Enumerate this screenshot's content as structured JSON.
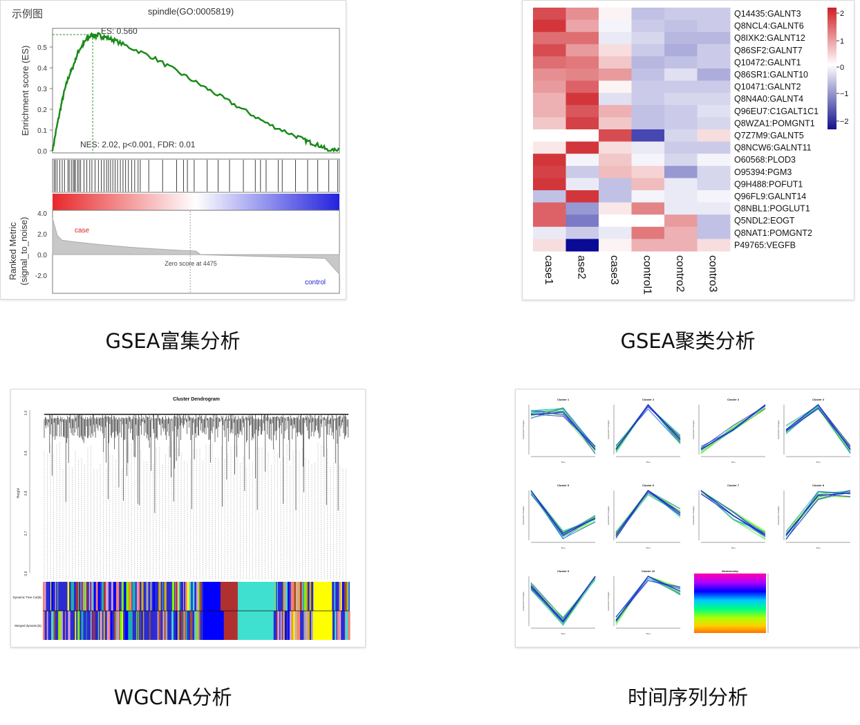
{
  "captions": {
    "gsea_enrich": "GSEA富集分析",
    "gsea_cluster": "GSEA聚类分析",
    "wgcna": "WGCNA分析",
    "timeseries": "时间序列分析"
  },
  "gsea_enrich": {
    "corner_label": "示例图",
    "title": "spindle(GO:0005819)",
    "es_label": "ES: 0.560",
    "stats_label": "NES: 2.02, p<0.001, FDR: 0.01",
    "ylabel": "Enrichment score (ES)",
    "ylabel2_line1": "Ranked Metric",
    "ylabel2_line2": "(signal_to_noise)",
    "case_label": "case",
    "control_label": "control",
    "zero_label": "Zero score at 4475",
    "es_ticks": [
      "0.0",
      "0.1",
      "0.2",
      "0.3",
      "0.4",
      "0.5"
    ],
    "metric_ticks": [
      "4.0",
      "2.0",
      "0.0",
      "-2.0"
    ]
  },
  "chart_data": [
    {
      "type": "line",
      "panel": "gsea-enrichment",
      "title": "spindle(GO:0005819)",
      "ylabel": "Enrichment score (ES)",
      "ylim": [
        0,
        0.58
      ],
      "x": [
        0,
        0.01,
        0.02,
        0.03,
        0.04,
        0.05,
        0.06,
        0.07,
        0.08,
        0.09,
        0.1,
        0.11,
        0.12,
        0.13,
        0.14,
        0.15,
        0.16,
        0.17,
        0.18,
        0.2,
        0.22,
        0.25,
        0.3,
        0.35,
        0.4,
        0.45,
        0.5,
        0.55,
        0.6,
        0.65,
        0.7,
        0.75,
        0.8,
        0.85,
        0.88,
        0.9,
        0.92,
        0.94,
        0.96,
        0.98,
        1.0
      ],
      "y": [
        0,
        0.08,
        0.15,
        0.22,
        0.28,
        0.33,
        0.37,
        0.4,
        0.44,
        0.48,
        0.5,
        0.52,
        0.54,
        0.55,
        0.56,
        0.55,
        0.56,
        0.55,
        0.55,
        0.54,
        0.53,
        0.51,
        0.48,
        0.45,
        0.41,
        0.37,
        0.33,
        0.29,
        0.25,
        0.21,
        0.17,
        0.13,
        0.1,
        0.07,
        0.05,
        0.04,
        0.03,
        0.02,
        0.0,
        0.0,
        0.01
      ],
      "peak_es": 0.56,
      "nes": 2.02,
      "zero_score_at": 4475
    },
    {
      "type": "heatmap",
      "panel": "gsea-cluster",
      "columns": [
        "case1",
        "ase2",
        "case3",
        "control1",
        "contro2",
        "contro3"
      ],
      "rows": [
        "Q14435:GALNT3",
        "Q8NCL4:GALNT6",
        "Q8IXK2:GALNT12",
        "Q86SF2:GALNT7",
        "Q10472:GALNT1",
        "Q86SR1:GALNT10",
        "Q10471:GALNT2",
        "Q8N4A0:GALNT4",
        "Q96EU7:C1GALT1C1",
        "Q8WZA1:POMGNT1",
        "Q7Z7M9:GALNT5",
        "Q8NCW6:GALNT11",
        "O60568:PLOD3",
        "O95394:PGM3",
        "Q9H488:POFUT1",
        "Q96FL9:GALNT14",
        "Q8NBL1:POGLUT1",
        "Q5NDL2:EOGT",
        "Q8NAT1:POMGNT2",
        "P49765:VEGFB"
      ],
      "values": [
        [
          1.6,
          1.0,
          0.1,
          -0.6,
          -0.5,
          -0.5
        ],
        [
          1.8,
          0.8,
          -0.1,
          -0.5,
          -0.6,
          -0.5
        ],
        [
          1.3,
          1.3,
          -0.2,
          -0.4,
          -0.7,
          -0.7
        ],
        [
          1.6,
          0.9,
          0.3,
          -0.5,
          -0.8,
          -0.5
        ],
        [
          1.3,
          1.2,
          0.5,
          -0.7,
          -0.6,
          -0.5
        ],
        [
          1.0,
          1.1,
          0.9,
          -0.6,
          -0.3,
          -0.8
        ],
        [
          0.9,
          1.4,
          0.1,
          -0.5,
          -0.5,
          -0.5
        ],
        [
          0.7,
          1.8,
          -0.3,
          -0.5,
          -0.4,
          -0.4
        ],
        [
          0.7,
          1.5,
          0.7,
          -0.6,
          -0.5,
          -0.3
        ],
        [
          0.5,
          1.7,
          0.5,
          -0.6,
          -0.5,
          -0.4
        ],
        [
          0.0,
          0.0,
          1.6,
          -1.8,
          -0.4,
          0.3
        ],
        [
          0.2,
          1.8,
          0.3,
          -0.2,
          -0.5,
          -0.5
        ],
        [
          1.8,
          -0.1,
          0.5,
          -0.1,
          -0.4,
          -0.1
        ],
        [
          1.7,
          -0.5,
          0.6,
          0.4,
          -1.0,
          -0.4
        ],
        [
          1.8,
          -0.2,
          -0.6,
          0.6,
          -0.2,
          -0.4
        ],
        [
          -0.6,
          1.8,
          -0.6,
          -0.1,
          -0.2,
          -0.1
        ],
        [
          1.4,
          -1.0,
          0.2,
          1.1,
          -0.2,
          -0.2
        ],
        [
          1.4,
          -1.3,
          0.0,
          0.0,
          0.9,
          -0.6
        ],
        [
          -0.2,
          -0.5,
          -0.2,
          1.2,
          0.7,
          -0.6
        ],
        [
          0.3,
          -2.4,
          0.1,
          0.7,
          0.7,
          0.3
        ]
      ],
      "legend_ticks": [
        "2",
        "1",
        "0",
        "−1",
        "−2"
      ]
    },
    {
      "type": "line",
      "panel": "time-series",
      "series": [
        {
          "name": "Cluster 1",
          "values": [
            0.8,
            0.85,
            0.1
          ]
        },
        {
          "name": "Cluster 2",
          "values": [
            0.1,
            1.0,
            0.3
          ]
        },
        {
          "name": "Cluster 3",
          "values": [
            0.1,
            0.5,
            1.0
          ]
        },
        {
          "name": "Cluster 4",
          "values": [
            0.5,
            1.0,
            0.1
          ]
        },
        {
          "name": "Cluster 5",
          "values": [
            1.0,
            0.1,
            0.45
          ]
        },
        {
          "name": "Cluster 6",
          "values": [
            0.1,
            1.0,
            0.55
          ]
        },
        {
          "name": "Cluster 7",
          "values": [
            1.0,
            0.5,
            0.1
          ]
        },
        {
          "name": "Cluster 8",
          "values": [
            0.1,
            0.9,
            0.95
          ]
        },
        {
          "name": "Cluster 9",
          "values": [
            0.8,
            0.1,
            1.0
          ]
        },
        {
          "name": "Cluster 10",
          "values": [
            0.1,
            1.0,
            0.7
          ]
        }
      ],
      "membership_title": "Membership"
    }
  ],
  "wgcna": {
    "title": "Cluster Dendrogram",
    "ylabel": "Height",
    "ticks": [
      "1.0",
      "0.9",
      "0.8",
      "0.7",
      "0.6"
    ],
    "row1_label": "Dynamic Tree Cut(5)",
    "row2_label": "Merged dynamic(5)"
  },
  "timeseries": {
    "xlabel": "Time",
    "ylabel": "Expression changes"
  }
}
